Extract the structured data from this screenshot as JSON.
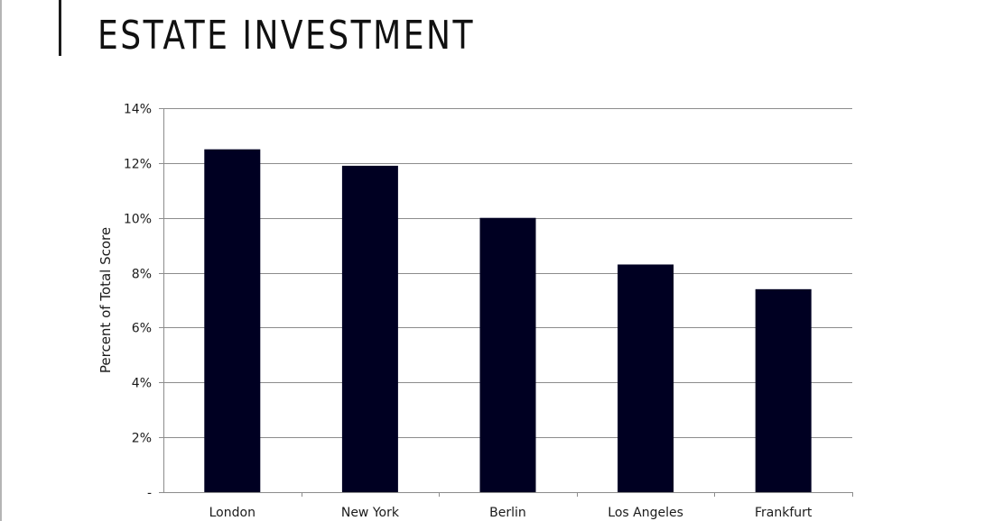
{
  "slide": {
    "title": "ESTATE INVESTMENT"
  },
  "colors": {
    "bar": "#000022",
    "grid": "#8c8c8c",
    "axis": "#8c8c8c",
    "title_bar": "#1a1a1a"
  },
  "chart_data": {
    "type": "bar",
    "title": "",
    "xlabel": "",
    "ylabel": "Percent of Total Score",
    "categories": [
      "London",
      "New York",
      "Berlin",
      "Los Angeles",
      "Frankfurt"
    ],
    "values": [
      12.5,
      11.9,
      10.0,
      8.3,
      7.4
    ],
    "ylim": [
      0,
      14
    ],
    "yticks": [
      0,
      2,
      4,
      6,
      8,
      10,
      12,
      14
    ],
    "ytick_labels": [
      "-",
      "2%",
      "4%",
      "6%",
      "8%",
      "10%",
      "12%",
      "14%"
    ],
    "grid": true,
    "legend": "none"
  }
}
